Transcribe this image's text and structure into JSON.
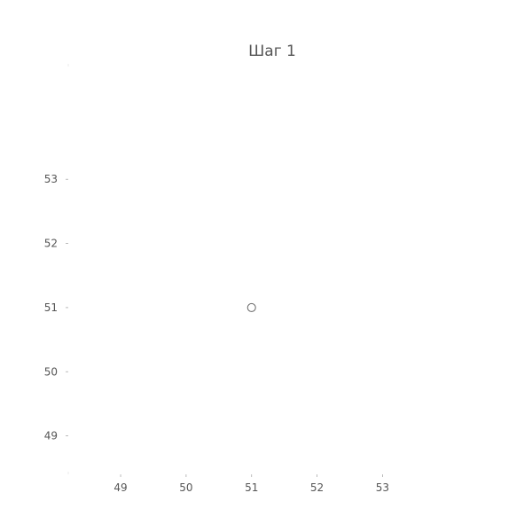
{
  "chart_data": {
    "type": "scatter",
    "title": "Шаг 1",
    "xlabel": "",
    "ylabel": "",
    "xlim": [
      48.2,
      54.2
    ],
    "ylim": [
      48.4,
      54.8
    ],
    "xticks": [
      49,
      50,
      51,
      52,
      53
    ],
    "yticks": [
      49,
      50,
      51,
      52,
      53
    ],
    "grid": false,
    "legend": "none",
    "marker": "hollow-circle",
    "colors": {
      "text": "#555555",
      "marker": "#666666",
      "tick": "#aaaaaa"
    },
    "points": [
      {
        "x": 51,
        "y": 51
      }
    ]
  }
}
